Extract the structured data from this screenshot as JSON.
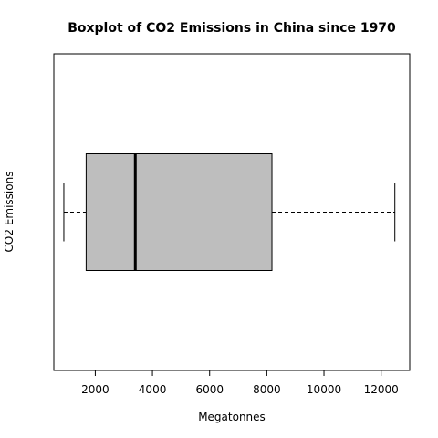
{
  "chart_data": {
    "type": "boxplot",
    "title": "Boxplot of CO2 Emissions in China since 1970",
    "xlabel": "Megatonnes",
    "ylabel": "CO2 Emissions",
    "orientation": "horizontal",
    "xlim": [
      550,
      13000
    ],
    "xticks": [
      2000,
      4000,
      6000,
      8000,
      10000,
      12000
    ],
    "xtick_labels": [
      "2000",
      "4000",
      "6000",
      "8000",
      "10000",
      "12000"
    ],
    "box": {
      "min": 900,
      "q1": 1680,
      "median": 3400,
      "q3": 8180,
      "max": 12480
    },
    "box_fill": "#bebebe",
    "box_stroke": "#000000",
    "whisker_style": "dashed",
    "grid": false
  }
}
